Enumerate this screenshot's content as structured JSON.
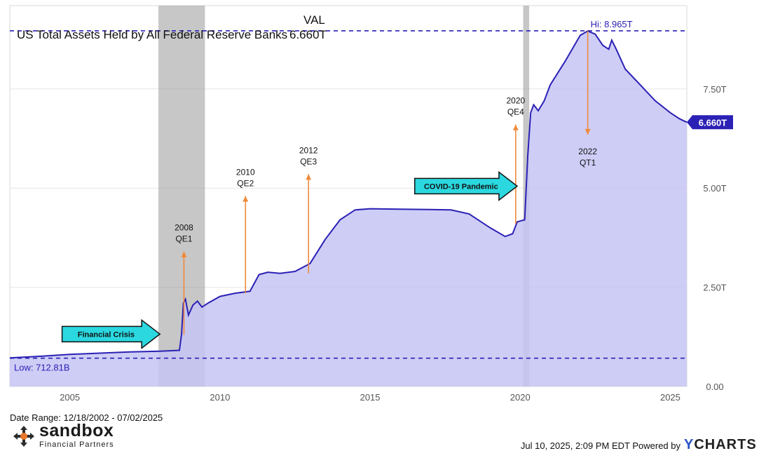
{
  "header": {
    "title": "US Total Assets Held by All Federal Reserve Banks",
    "val_label": "VAL",
    "val_value": "6.660T"
  },
  "footer": {
    "date_range": "Date Range: 12/18/2002 - 07/02/2025",
    "timestamp": "Jul 10, 2025, 2:09 PM EDT Powered by",
    "ycharts_y": "Y",
    "ycharts_rest": "CHARTS",
    "logo_name": "sandbox",
    "logo_sub": "Financial Partners"
  },
  "colors": {
    "line": "#2b21b5",
    "area": "#c6c4f4",
    "shade": "#8f8f8f",
    "arrow": "#f08a3a",
    "callout": "#2bd8e0",
    "reference_line": "#2b21b5"
  },
  "chart_data": {
    "type": "area",
    "title": "US Total Assets Held by All Federal Reserve Banks",
    "x_unit": "year",
    "xlim": [
      2003.0,
      2025.55
    ],
    "ylim": [
      0,
      9.6
    ],
    "y_unit": "trillions USD",
    "x_ticks": [
      2005,
      2010,
      2015,
      2020,
      2025
    ],
    "x_tick_labels": [
      "2005",
      "2010",
      "2015",
      "2020",
      "2025"
    ],
    "y_ticks": [
      0,
      2.5,
      5.0,
      7.5
    ],
    "y_tick_labels": [
      "0.00",
      "2.50T",
      "5.00T",
      "7.50T"
    ],
    "grid": "horizontal",
    "series": [
      {
        "x": [
          2003.0,
          2004.0,
          2005.0,
          2006.0,
          2007.0,
          2008.0,
          2008.65,
          2008.72,
          2008.78,
          2008.85,
          2008.95,
          2009.1,
          2009.25,
          2009.4,
          2009.6,
          2010.0,
          2010.5,
          2011.0,
          2011.3,
          2011.6,
          2012.0,
          2012.5,
          2013.0,
          2013.5,
          2014.0,
          2014.5,
          2015.0,
          2016.0,
          2017.0,
          2017.7,
          2018.3,
          2019.0,
          2019.5,
          2019.75,
          2019.9,
          2020.15,
          2020.25,
          2020.35,
          2020.45,
          2020.6,
          2020.8,
          2021.0,
          2021.5,
          2022.0,
          2022.25,
          2022.5,
          2022.75,
          2022.95,
          2023.05,
          2023.2,
          2023.5,
          2024.0,
          2024.5,
          2025.0,
          2025.3,
          2025.55
        ],
        "y": [
          0.72,
          0.76,
          0.81,
          0.84,
          0.87,
          0.89,
          0.91,
          1.3,
          2.1,
          2.2,
          1.8,
          2.05,
          2.15,
          2.0,
          2.1,
          2.27,
          2.35,
          2.4,
          2.82,
          2.88,
          2.85,
          2.9,
          3.1,
          3.7,
          4.2,
          4.45,
          4.48,
          4.47,
          4.46,
          4.45,
          4.35,
          4.0,
          3.78,
          3.85,
          4.15,
          4.2,
          5.8,
          6.9,
          7.1,
          6.95,
          7.2,
          7.6,
          8.2,
          8.85,
          8.96,
          8.88,
          8.6,
          8.5,
          8.73,
          8.5,
          8.0,
          7.6,
          7.2,
          6.9,
          6.75,
          6.66
        ]
      }
    ],
    "last_value_label": "6.660T",
    "shaded_periods": [
      {
        "start": 2007.95,
        "end": 2009.5
      },
      {
        "start": 2020.1,
        "end": 2020.3
      }
    ],
    "reference_lines": [
      {
        "y": 8.965,
        "label": "Hi: 8.965T"
      },
      {
        "y": 0.71281,
        "label": "Low: 712.81B"
      }
    ],
    "annotations": [
      {
        "year": "2008",
        "label": "QE1",
        "x": 2008.8,
        "y_from": 1.3,
        "y_to": 3.4,
        "direction": "up"
      },
      {
        "year": "2010",
        "label": "QE2",
        "x": 2010.85,
        "y_from": 2.35,
        "y_to": 4.8,
        "direction": "up"
      },
      {
        "year": "2012",
        "label": "QE3",
        "x": 2012.95,
        "y_from": 2.85,
        "y_to": 5.35,
        "direction": "up"
      },
      {
        "year": "2020",
        "label": "QE4",
        "x": 2019.85,
        "y_from": 4.1,
        "y_to": 6.6,
        "direction": "up"
      },
      {
        "year": "2022",
        "label": "QT1",
        "x": 2022.25,
        "y_from": 8.96,
        "y_to": 6.35,
        "direction": "down"
      }
    ],
    "callouts": [
      {
        "text": "Financial Crisis",
        "x_tip": 2008.0,
        "y": 1.32
      },
      {
        "text": "COVID-19 Pandemic",
        "x_tip": 2019.9,
        "y": 5.05
      }
    ]
  }
}
